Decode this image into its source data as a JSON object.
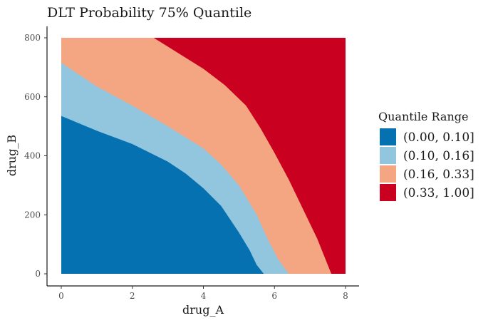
{
  "chart_data": {
    "type": "heatmap",
    "title": "DLT Probability 75% Quantile",
    "xlabel": "drug_A",
    "ylabel": "drug_B",
    "xlim": [
      0,
      8
    ],
    "ylim": [
      0,
      800
    ],
    "x_ticks": [
      0,
      2,
      4,
      6,
      8
    ],
    "y_ticks": [
      0,
      200,
      400,
      600,
      800
    ],
    "grid": false,
    "legend": {
      "title": "Quantile Range",
      "placement": "right"
    },
    "regions": [
      {
        "name": "(0.00, 0.10]",
        "color": "#0571b0",
        "upper_boundary": [
          [
            0,
            535
          ],
          [
            0.5,
            510
          ],
          [
            1,
            485
          ],
          [
            2,
            440
          ],
          [
            3,
            380
          ],
          [
            3.5,
            340
          ],
          [
            4,
            290
          ],
          [
            4.5,
            230
          ],
          [
            5,
            140
          ],
          [
            5.3,
            80
          ],
          [
            5.5,
            30
          ],
          [
            5.7,
            0
          ]
        ]
      },
      {
        "name": "(0.10, 0.16]",
        "color": "#92c5de",
        "upper_boundary": [
          [
            0,
            715
          ],
          [
            0.5,
            675
          ],
          [
            1,
            635
          ],
          [
            2,
            570
          ],
          [
            3,
            500
          ],
          [
            4,
            425
          ],
          [
            4.5,
            370
          ],
          [
            5,
            300
          ],
          [
            5.5,
            200
          ],
          [
            5.8,
            120
          ],
          [
            6.1,
            50
          ],
          [
            6.4,
            0
          ]
        ]
      },
      {
        "name": "(0.16, 0.33]",
        "color": "#f4a582",
        "upper_boundary": [
          [
            2.6,
            800
          ],
          [
            3,
            770
          ],
          [
            4,
            695
          ],
          [
            4.6,
            640
          ],
          [
            5.2,
            570
          ],
          [
            5.6,
            495
          ],
          [
            6,
            410
          ],
          [
            6.4,
            320
          ],
          [
            6.8,
            220
          ],
          [
            7.2,
            120
          ],
          [
            7.6,
            0
          ]
        ]
      },
      {
        "name": "(0.33, 1.00]",
        "color": "#ca0020"
      }
    ]
  }
}
